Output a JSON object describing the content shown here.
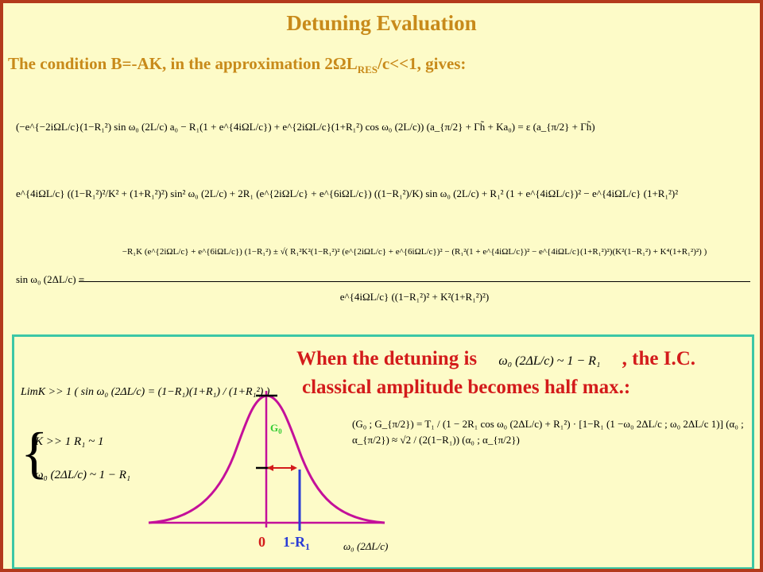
{
  "title": "Detuning Evaluation",
  "subtitle": {
    "pre": "The condition B=-AK, in the approximation 2ΩL",
    "sub": "RES",
    "post": "/c<<1, gives:"
  },
  "equations": {
    "eq1": "(−e^{−2iΩL/c}(1−R₁²) sin ω₀ (2L/c) a₀ − R₁(1 + e^{4iΩL/c}) + e^{2iΩL/c}(1+R₁²) cos ω₀ (2L/c)) (a_{π/2} + Γh̃ + Ka₀) = ε (a_{π/2} + Γh̃)",
    "eq2": "e^{4iΩL/c} ((1−R₁²)²/K² + (1+R₁²)²) sin² ω₀ (2L/c) + 2R₁ (e^{2iΩL/c} + e^{6iΩL/c}) ((1−R₁²)/K) sin ω₀ (2L/c) + R₁² (1 + e^{4iΩL/c})² − e^{4iΩL/c} (1+R₁²)²",
    "eq3_lhs": "sin ω₀ (2ΔL/c) =",
    "eq3_num": "−R₁K (e^{2iΩL/c} + e^{6iΩL/c}) (1−R₁²) ± √( R₁²K²(1−R₁²)² (e^{2iΩL/c} + e^{6iΩL/c})² − (R₁²(1 + e^{4iΩL/c})² − e^{4iΩL/c}(1+R₁²)²)(K²(1−R₁²) + K⁴(1+R₁²)²) )",
    "eq3_den": "e^{4iΩL/c} ((1−R₁²)² + K²(1+R₁²)²)"
  },
  "panel": {
    "headline1_pre": "When the detuning is",
    "headline1_post": ", the I.C.",
    "headline2": "classical amplitude becomes half max.:",
    "condition_formula": "ω₀ (2ΔL/c) ~ 1 − R₁",
    "limk_formula": "LimK >> 1 ( sin ω₀ (2ΔL/c) = (1−R₁)(1+R₁) / (1+R₁²) )",
    "brace_line1": "K >> 1   R₁ ~ 1",
    "brace_line2": "ω₀ (2ΔL/c) ~ 1 − R₁",
    "plot": {
      "peak_label": "G",
      "peak_sub": "0",
      "origin_label": "0",
      "marker_label": "1-R",
      "marker_sub": "1",
      "axis_label": "ω₀ (2ΔL/c)",
      "curve_color": "#c4109a",
      "arrow_color": "#d31b1b",
      "marker_color": "#2a3cd6"
    },
    "matrix_formula": "(G₀ ; G_{π/2}) = T₁ / (1 − 2R₁ cos ω₀ (2ΔL/c) + R₁²) · [1−R₁ (1  −ω₀ 2ΔL/c ; ω₀ 2ΔL/c  1)] (α₀ ; α_{π/2}) ≈ √2 / (2(1−R₁)) (α₀ ; α_{π/2})"
  }
}
